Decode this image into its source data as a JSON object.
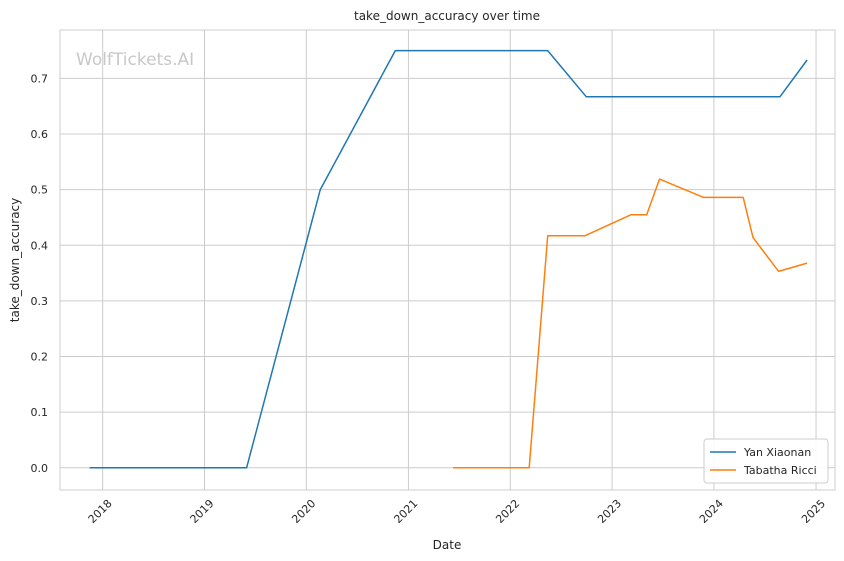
{
  "chart_data": {
    "type": "line",
    "title": "take_down_accuracy over time",
    "xlabel": "Date",
    "ylabel": "take_down_accuracy",
    "watermark": "WolfTickets.AI",
    "xlim": [
      "2017-08-01",
      "2025-03-10"
    ],
    "ylim": [
      -0.04,
      0.787
    ],
    "x_ticks": [
      "2018",
      "2019",
      "2020",
      "2021",
      "2022",
      "2023",
      "2024",
      "2025"
    ],
    "y_ticks": [
      "0.0",
      "0.1",
      "0.2",
      "0.3",
      "0.4",
      "0.5",
      "0.6",
      "0.7"
    ],
    "grid": true,
    "legend_position": "lower-right",
    "series": [
      {
        "name": "Yan Xiaonan",
        "color": "#1f77b4",
        "x": [
          "2017-11-15",
          "2019-06-01",
          "2020-02-20",
          "2020-11-15",
          "2022-05-15",
          "2022-09-30",
          "2024-08-25",
          "2024-11-30"
        ],
        "y": [
          0.0,
          0.0,
          0.5,
          0.75,
          0.75,
          0.667,
          0.667,
          0.733
        ]
      },
      {
        "name": "Tabatha Ricci",
        "color": "#ff7f0e",
        "x": [
          "2021-06-10",
          "2022-03-10",
          "2022-05-15",
          "2022-09-25",
          "2023-03-10",
          "2023-05-05",
          "2023-06-20",
          "2023-11-25",
          "2024-04-15",
          "2024-05-20",
          "2024-08-20",
          "2024-11-30"
        ],
        "y": [
          0.0,
          0.0,
          0.417,
          0.417,
          0.455,
          0.455,
          0.519,
          0.486,
          0.486,
          0.414,
          0.353,
          0.368
        ]
      }
    ]
  }
}
